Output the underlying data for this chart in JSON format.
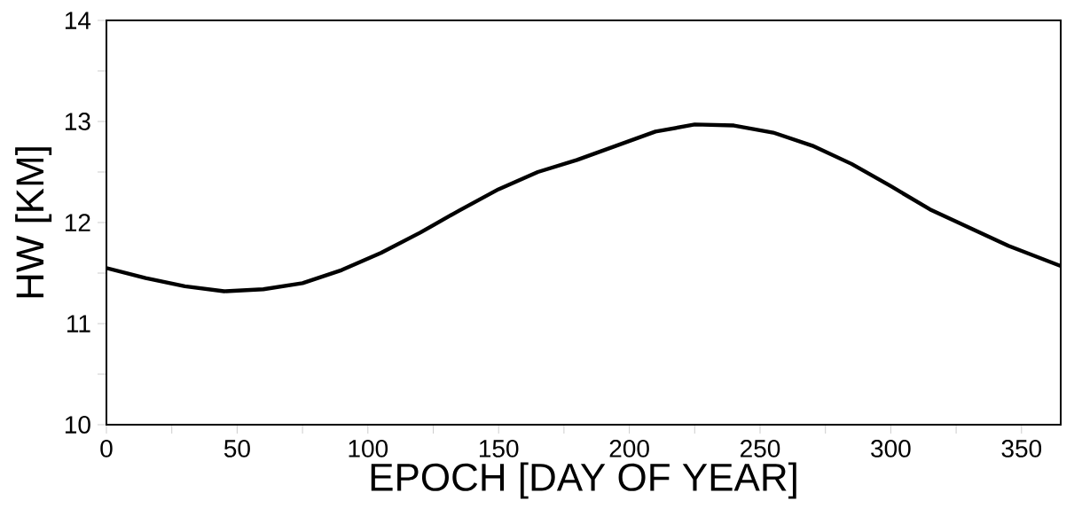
{
  "chart_data": {
    "type": "line",
    "xlabel": "EPOCH [DAY OF YEAR]",
    "ylabel": "HW [KM]",
    "x": [
      0,
      15,
      30,
      45,
      60,
      75,
      90,
      105,
      120,
      135,
      150,
      165,
      180,
      195,
      210,
      225,
      240,
      255,
      270,
      285,
      300,
      315,
      330,
      345,
      365
    ],
    "series": [
      {
        "color": "#000000",
        "values": [
          11.55,
          11.45,
          11.37,
          11.32,
          11.34,
          11.4,
          11.53,
          11.7,
          11.9,
          12.12,
          12.33,
          12.5,
          12.62,
          12.76,
          12.9,
          12.97,
          12.96,
          12.89,
          12.76,
          12.58,
          12.36,
          12.13,
          11.95,
          11.77,
          11.57
        ]
      }
    ],
    "xlim": [
      0,
      365
    ],
    "ylim": [
      10,
      14
    ],
    "xticks": [
      0,
      {
        "value": 25,
        "label": null
      },
      50,
      {
        "value": 75,
        "label": null
      },
      100,
      {
        "value": 125,
        "label": null
      },
      150,
      {
        "value": 175,
        "label": null
      },
      200,
      {
        "value": 225,
        "label": null
      },
      250,
      {
        "value": 275,
        "label": null
      },
      300,
      {
        "value": 325,
        "label": null
      },
      350
    ],
    "yticks": [
      10,
      {
        "value": 10.5,
        "label": null
      },
      11,
      {
        "value": 11.5,
        "label": null
      },
      12,
      {
        "value": 12.5,
        "label": null
      },
      13,
      {
        "value": 13.5,
        "label": null
      },
      14
    ],
    "grid": false,
    "marker": "none",
    "line_style": "solid"
  }
}
